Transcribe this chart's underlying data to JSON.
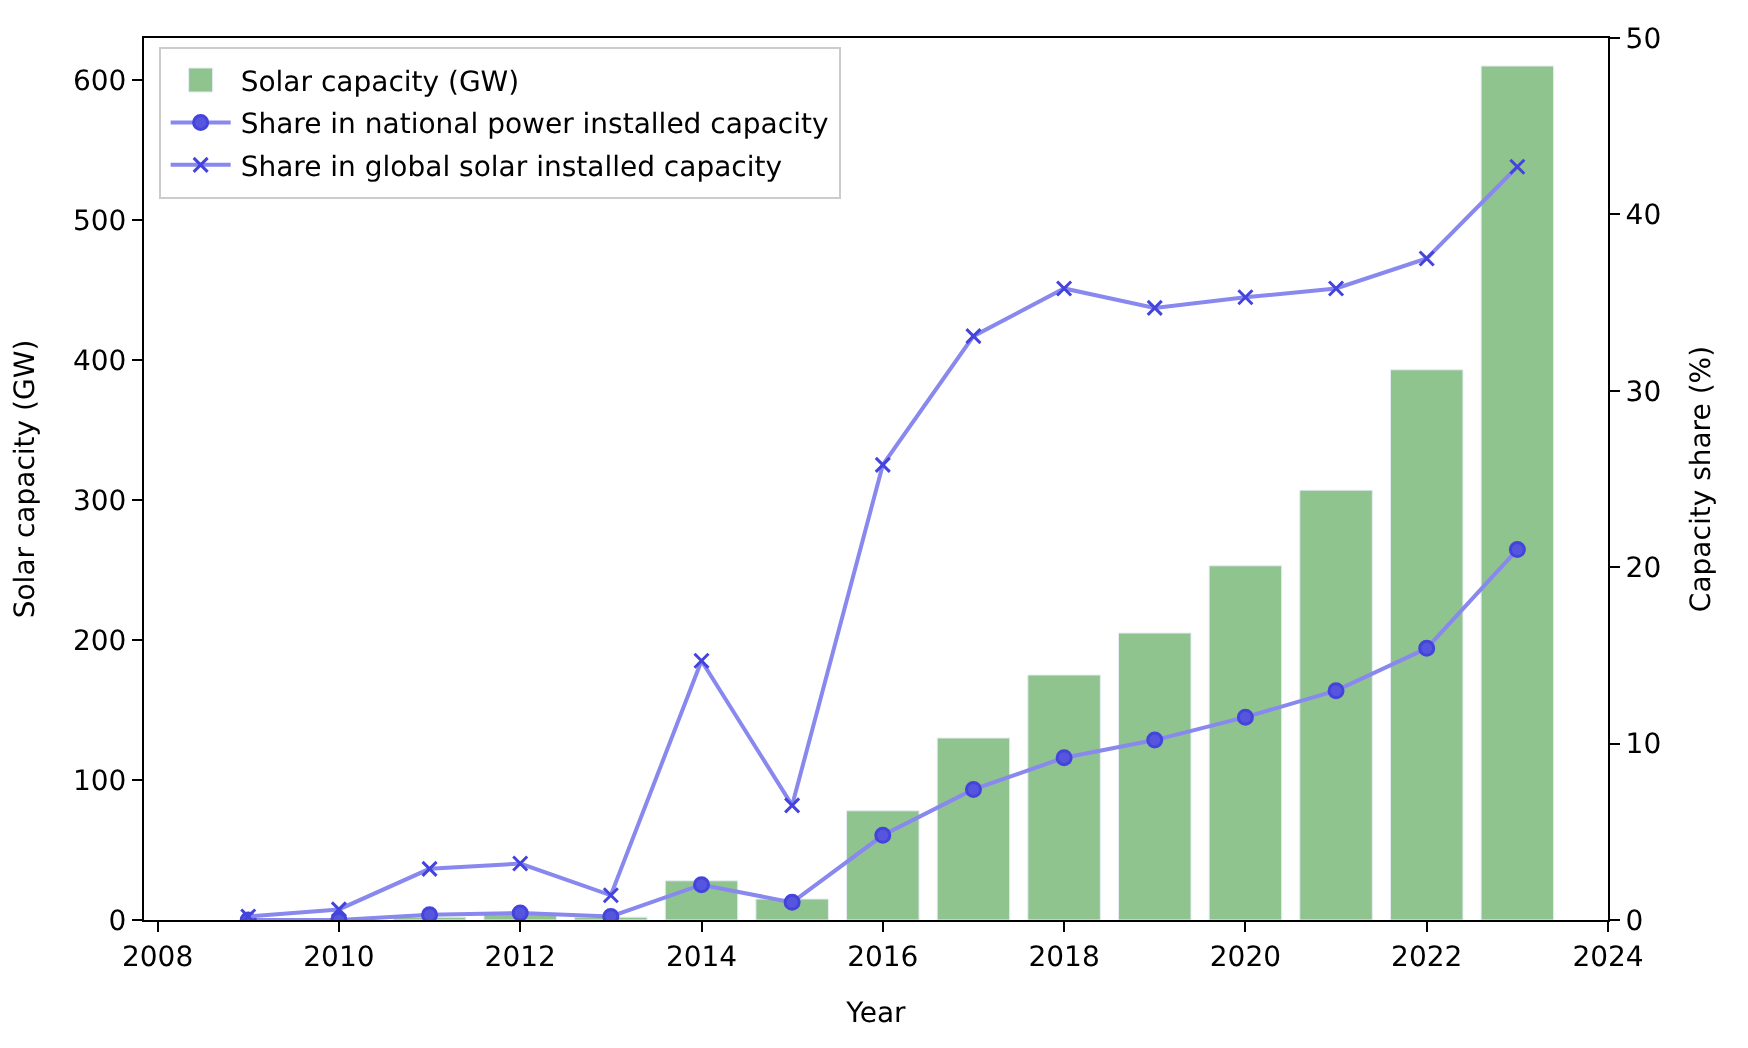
{
  "chart_data": {
    "type": "bar",
    "xlabel": "Year",
    "ylabel": "Solar capacity (GW)",
    "y2label": "Capacity share (%)",
    "x": [
      2009,
      2010,
      2011,
      2012,
      2013,
      2014,
      2015,
      2016,
      2017,
      2018,
      2019,
      2020,
      2021,
      2022,
      2023
    ],
    "series": [
      {
        "name": "Solar capacity (GW)",
        "color": "#8fc48f",
        "values": [
          null,
          1,
          2,
          4,
          2,
          28,
          15,
          78,
          130,
          175,
          205,
          253,
          307,
          393,
          610
        ]
      },
      {
        "name": "Share in national power installed capacity",
        "type": "line",
        "axis": "y2",
        "marker": "circle",
        "color": "#8888ee",
        "values": [
          0,
          0,
          0.3,
          0.4,
          0.2,
          2.0,
          1.0,
          4.8,
          7.4,
          9.2,
          10.2,
          11.5,
          13.0,
          15.4,
          21.0
        ]
      },
      {
        "name": "Share in global solar installed capacity",
        "type": "line",
        "axis": "y2",
        "marker": "cross",
        "color": "#8888ee",
        "values": [
          0.2,
          0.6,
          2.9,
          3.2,
          1.4,
          14.7,
          6.5,
          25.8,
          33.1,
          35.8,
          34.7,
          35.3,
          35.8,
          37.5,
          42.7
        ]
      }
    ],
    "xlim": [
      2007.85,
      2024.0
    ],
    "xticks": [
      2008,
      2010,
      2012,
      2014,
      2016,
      2018,
      2020,
      2022,
      2024
    ],
    "ylim": [
      0,
      630
    ],
    "yticks": [
      0,
      100,
      200,
      300,
      400,
      500,
      600
    ],
    "y2lim": [
      0,
      50
    ],
    "y2ticks": [
      0,
      10,
      20,
      30,
      40,
      50
    ],
    "legend": "top left"
  }
}
